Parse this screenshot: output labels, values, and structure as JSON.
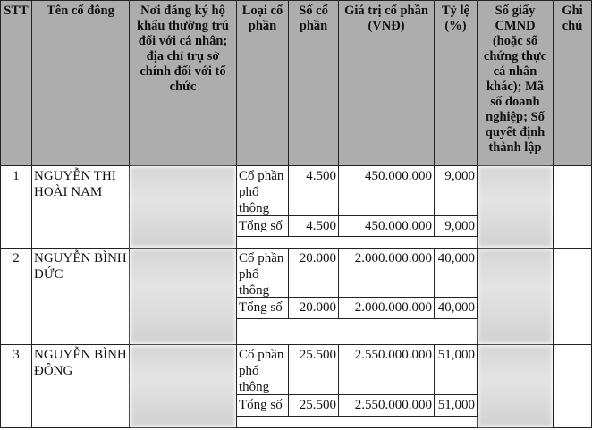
{
  "headers": {
    "stt": "STT",
    "name": "Tên cổ đông",
    "address": "Nơi đăng ký hộ khẩu thường trú đối với cá nhân; địa chỉ trụ sở chính đối với tổ chức",
    "type": "Loại cổ phần",
    "shares": "Số cổ phần",
    "value": "Giá trị cổ phần (VNĐ)",
    "ratio": "Tỷ lệ (%)",
    "id": "Số giấy CMND (hoặc số chứng thực cá nhân khác); Mã số doanh nghiệp; Số quyết định thành lập",
    "note": "Ghi chú"
  },
  "rows": [
    {
      "stt": "1",
      "name": "NGUYỄN THỊ HOÀI NAM",
      "lines": [
        {
          "type": "Cổ phần phổ thông",
          "shares": "4.500",
          "value": "450.000.000",
          "ratio": "9,000"
        },
        {
          "type": "Tổng số",
          "shares": "4.500",
          "value": "450.000.000",
          "ratio": "9,000"
        }
      ]
    },
    {
      "stt": "2",
      "name": "NGUYỄN BÌNH ĐỨC",
      "lines": [
        {
          "type": "Cổ phần phổ thông",
          "shares": "20.000",
          "value": "2.000.000.000",
          "ratio": "40,000"
        },
        {
          "type": "Tổng số",
          "shares": "20.000",
          "value": "2.000.000.000",
          "ratio": "40,000"
        }
      ]
    },
    {
      "stt": "3",
      "name": "NGUYỄN BÌNH ĐÔNG",
      "lines": [
        {
          "type": "Cổ phần phổ thông",
          "shares": "25.500",
          "value": "2.550.000.000",
          "ratio": "51,000"
        },
        {
          "type": "Tổng số",
          "shares": "25.500",
          "value": "2.550.000.000",
          "ratio": "51,000"
        }
      ]
    }
  ]
}
